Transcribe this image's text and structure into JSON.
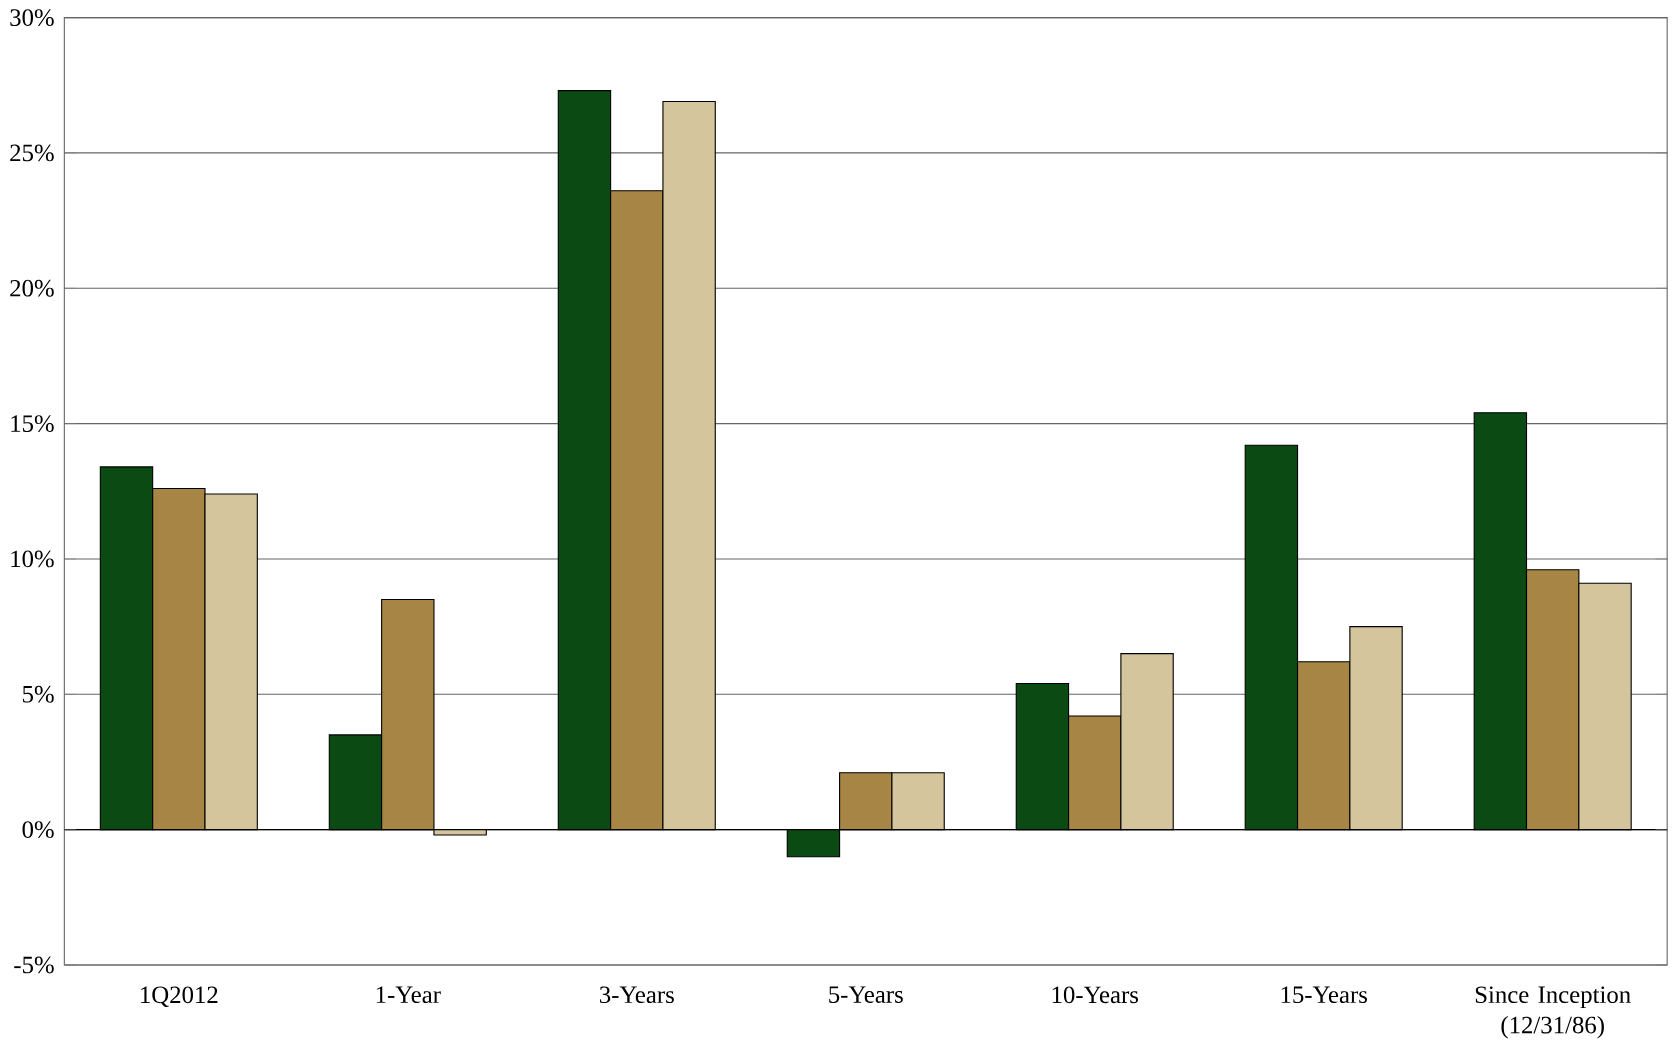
{
  "chart_data": {
    "type": "bar",
    "categories": [
      "1Q2012",
      "1-Year",
      "3-Years",
      "5-Years",
      "10-Years",
      "15-Years",
      "Since Inception (12/31/86)"
    ],
    "series": [
      {
        "color": "#0b4a12",
        "values": [
          13.4,
          3.5,
          27.3,
          -1.0,
          5.4,
          14.2,
          15.4
        ]
      },
      {
        "color": "#a68545",
        "values": [
          12.6,
          8.5,
          23.6,
          2.1,
          4.2,
          6.2,
          9.6
        ]
      },
      {
        "color": "#d4c59c",
        "values": [
          12.4,
          -0.2,
          26.9,
          2.1,
          6.5,
          7.5,
          9.1
        ]
      }
    ],
    "ylim": [
      -5,
      30
    ],
    "yticks": [
      {
        "value": -5,
        "label": "-5%"
      },
      {
        "value": 0,
        "label": "0%"
      },
      {
        "value": 5,
        "label": "5%"
      },
      {
        "value": 10,
        "label": "10%"
      },
      {
        "value": 15,
        "label": "15%"
      },
      {
        "value": 20,
        "label": "20%"
      },
      {
        "value": 25,
        "label": "25%"
      },
      {
        "value": 30,
        "label": "30%"
      }
    ],
    "grid": "y"
  }
}
